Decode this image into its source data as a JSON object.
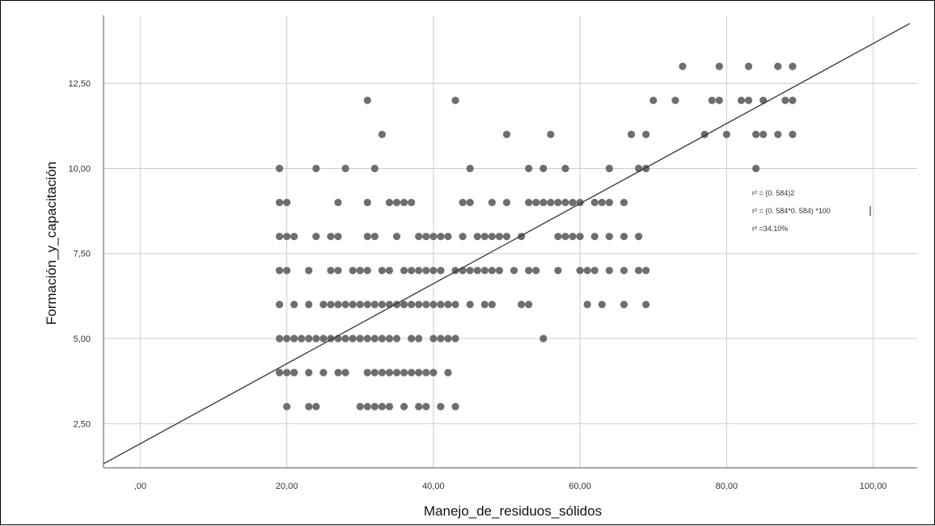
{
  "chart_data": {
    "type": "scatter",
    "title": "",
    "xlabel": "Manejo_de_residuos_sólidos",
    "ylabel": "Formación_y_capacitación",
    "xlim": [
      -5,
      106
    ],
    "ylim": [
      1.2,
      14.5
    ],
    "x_ticks": [
      0,
      20,
      40,
      60,
      80,
      100
    ],
    "x_tick_labels": [
      ",00",
      "20,00",
      "40,00",
      "60,00",
      "80,00",
      "100,00"
    ],
    "y_ticks": [
      2.5,
      5,
      7.5,
      10,
      12.5
    ],
    "y_tick_labels": [
      "2,50",
      "5,00",
      "7,50",
      "10,00",
      "12,50"
    ],
    "grid": true,
    "point_color": "#6e6e6e",
    "line_color": "#333333",
    "fit_line": {
      "points": [
        [
          -5,
          1.32
        ],
        [
          105,
          14.26
        ]
      ]
    },
    "annotations": [
      "r² = (0. 584)2",
      "r² = (0. 584*0. 584) *100",
      "r² =34.10%"
    ],
    "points": [
      [
        74,
        13
      ],
      [
        79,
        13
      ],
      [
        83,
        13
      ],
      [
        87,
        13
      ],
      [
        89,
        13
      ],
      [
        31,
        12
      ],
      [
        43,
        12
      ],
      [
        70,
        12
      ],
      [
        73,
        12
      ],
      [
        78,
        12
      ],
      [
        79,
        12
      ],
      [
        82,
        12
      ],
      [
        83,
        12
      ],
      [
        85,
        12
      ],
      [
        88,
        12
      ],
      [
        89,
        12
      ],
      [
        33,
        11
      ],
      [
        50,
        11
      ],
      [
        56,
        11
      ],
      [
        67,
        11
      ],
      [
        69,
        11
      ],
      [
        77,
        11
      ],
      [
        80,
        11
      ],
      [
        84,
        11
      ],
      [
        85,
        11
      ],
      [
        87,
        11
      ],
      [
        89,
        11
      ],
      [
        19,
        10
      ],
      [
        24,
        10
      ],
      [
        28,
        10
      ],
      [
        32,
        10
      ],
      [
        45,
        10
      ],
      [
        53,
        10
      ],
      [
        55,
        10
      ],
      [
        58,
        10
      ],
      [
        64,
        10
      ],
      [
        68,
        10
      ],
      [
        69,
        10
      ],
      [
        84,
        10
      ],
      [
        19,
        9
      ],
      [
        20,
        9
      ],
      [
        27,
        9
      ],
      [
        31,
        9
      ],
      [
        34,
        9
      ],
      [
        35,
        9
      ],
      [
        36,
        9
      ],
      [
        37,
        9
      ],
      [
        44,
        9
      ],
      [
        45,
        9
      ],
      [
        48,
        9
      ],
      [
        50,
        9
      ],
      [
        53,
        9
      ],
      [
        54,
        9
      ],
      [
        55,
        9
      ],
      [
        56,
        9
      ],
      [
        57,
        9
      ],
      [
        58,
        9
      ],
      [
        59,
        9
      ],
      [
        60,
        9
      ],
      [
        62,
        9
      ],
      [
        63,
        9
      ],
      [
        64,
        9
      ],
      [
        66,
        9
      ],
      [
        19,
        8
      ],
      [
        20,
        8
      ],
      [
        21,
        8
      ],
      [
        24,
        8
      ],
      [
        26,
        8
      ],
      [
        27,
        8
      ],
      [
        31,
        8
      ],
      [
        32,
        8
      ],
      [
        35,
        8
      ],
      [
        38,
        8
      ],
      [
        39,
        8
      ],
      [
        40,
        8
      ],
      [
        41,
        8
      ],
      [
        42,
        8
      ],
      [
        44,
        8
      ],
      [
        46,
        8
      ],
      [
        47,
        8
      ],
      [
        48,
        8
      ],
      [
        49,
        8
      ],
      [
        50,
        8
      ],
      [
        52,
        8
      ],
      [
        57,
        8
      ],
      [
        58,
        8
      ],
      [
        59,
        8
      ],
      [
        60,
        8
      ],
      [
        62,
        8
      ],
      [
        64,
        8
      ],
      [
        66,
        8
      ],
      [
        68,
        8
      ],
      [
        19,
        7
      ],
      [
        20,
        7
      ],
      [
        23,
        7
      ],
      [
        26,
        7
      ],
      [
        27,
        7
      ],
      [
        29,
        7
      ],
      [
        30,
        7
      ],
      [
        31,
        7
      ],
      [
        33,
        7
      ],
      [
        34,
        7
      ],
      [
        36,
        7
      ],
      [
        37,
        7
      ],
      [
        38,
        7
      ],
      [
        39,
        7
      ],
      [
        40,
        7
      ],
      [
        41,
        7
      ],
      [
        43,
        7
      ],
      [
        44,
        7
      ],
      [
        45,
        7
      ],
      [
        46,
        7
      ],
      [
        47,
        7
      ],
      [
        48,
        7
      ],
      [
        49,
        7
      ],
      [
        51,
        7
      ],
      [
        53,
        7
      ],
      [
        54,
        7
      ],
      [
        57,
        7
      ],
      [
        60,
        7
      ],
      [
        61,
        7
      ],
      [
        62,
        7
      ],
      [
        64,
        7
      ],
      [
        66,
        7
      ],
      [
        68,
        7
      ],
      [
        69,
        7
      ],
      [
        19,
        6
      ],
      [
        21,
        6
      ],
      [
        23,
        6
      ],
      [
        25,
        6
      ],
      [
        26,
        6
      ],
      [
        27,
        6
      ],
      [
        28,
        6
      ],
      [
        29,
        6
      ],
      [
        30,
        6
      ],
      [
        31,
        6
      ],
      [
        32,
        6
      ],
      [
        33,
        6
      ],
      [
        34,
        6
      ],
      [
        35,
        6
      ],
      [
        36,
        6
      ],
      [
        37,
        6
      ],
      [
        38,
        6
      ],
      [
        39,
        6
      ],
      [
        40,
        6
      ],
      [
        41,
        6
      ],
      [
        42,
        6
      ],
      [
        43,
        6
      ],
      [
        45,
        6
      ],
      [
        47,
        6
      ],
      [
        48,
        6
      ],
      [
        52,
        6
      ],
      [
        53,
        6
      ],
      [
        61,
        6
      ],
      [
        63,
        6
      ],
      [
        66,
        6
      ],
      [
        69,
        6
      ],
      [
        19,
        5
      ],
      [
        20,
        5
      ],
      [
        21,
        5
      ],
      [
        22,
        5
      ],
      [
        23,
        5
      ],
      [
        24,
        5
      ],
      [
        25,
        5
      ],
      [
        26,
        5
      ],
      [
        27,
        5
      ],
      [
        28,
        5
      ],
      [
        29,
        5
      ],
      [
        30,
        5
      ],
      [
        31,
        5
      ],
      [
        32,
        5
      ],
      [
        33,
        5
      ],
      [
        34,
        5
      ],
      [
        35,
        5
      ],
      [
        37,
        5
      ],
      [
        38,
        5
      ],
      [
        40,
        5
      ],
      [
        41,
        5
      ],
      [
        42,
        5
      ],
      [
        43,
        5
      ],
      [
        55,
        5
      ],
      [
        19,
        4
      ],
      [
        20,
        4
      ],
      [
        21,
        4
      ],
      [
        23,
        4
      ],
      [
        25,
        4
      ],
      [
        27,
        4
      ],
      [
        28,
        4
      ],
      [
        31,
        4
      ],
      [
        32,
        4
      ],
      [
        33,
        4
      ],
      [
        34,
        4
      ],
      [
        35,
        4
      ],
      [
        36,
        4
      ],
      [
        37,
        4
      ],
      [
        38,
        4
      ],
      [
        39,
        4
      ],
      [
        40,
        4
      ],
      [
        42,
        4
      ],
      [
        20,
        3
      ],
      [
        23,
        3
      ],
      [
        24,
        3
      ],
      [
        30,
        3
      ],
      [
        31,
        3
      ],
      [
        32,
        3
      ],
      [
        33,
        3
      ],
      [
        34,
        3
      ],
      [
        36,
        3
      ],
      [
        38,
        3
      ],
      [
        39,
        3
      ],
      [
        41,
        3
      ],
      [
        43,
        3
      ]
    ]
  }
}
